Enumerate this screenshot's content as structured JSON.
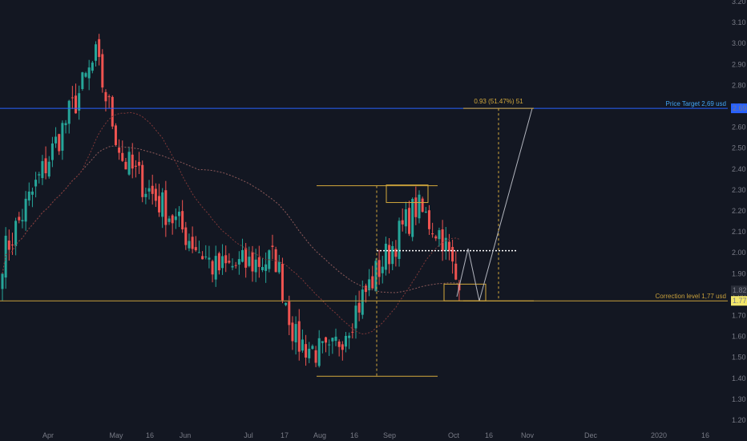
{
  "chart_data": {
    "type": "candlestick",
    "title": "",
    "xlabel": "",
    "ylabel": "",
    "ylim": [
      1.2,
      3.2
    ],
    "y_ticks": [
      "1.20",
      "1.30",
      "1.40",
      "1.50",
      "1.60",
      "1.70",
      "1.80",
      "1.90",
      "2.00",
      "2.10",
      "2.20",
      "2.30",
      "2.40",
      "2.50",
      "2.60",
      "2.70",
      "2.80",
      "2.90",
      "3.00",
      "3.10",
      "3.20"
    ],
    "x_ticks": [
      "Apr",
      "May",
      "16",
      "Jun",
      "Jul",
      "17",
      "Aug",
      "16",
      "Sep",
      "Oct",
      "16",
      "Nov",
      "Dec",
      "2020",
      "16"
    ],
    "grid": false,
    "current_price": "1.82",
    "price_target": {
      "label": "Price Target 2,69 usd",
      "badge": "2.69",
      "value": 2.69
    },
    "correction_level": {
      "label": "Correction level 1,77 usd",
      "badge": "1.77",
      "value": 1.77
    },
    "measure_label": "0.93 (51.47%) 51",
    "anchors": [
      {
        "value": 1.98,
        "note": "early Apr open"
      },
      {
        "value": 2.93,
        "note": "late Apr high"
      },
      {
        "value": 2.45,
        "note": "early May"
      },
      {
        "value": 1.92,
        "note": "mid Jun"
      },
      {
        "value": 1.97,
        "note": "early Jul"
      },
      {
        "value": 1.58,
        "note": "mid Jul"
      },
      {
        "value": 1.5,
        "note": "early Aug low"
      },
      {
        "value": 1.9,
        "note": "mid Aug"
      },
      {
        "value": 2.22,
        "note": "early Sep high"
      },
      {
        "value": 2.08,
        "note": "late Sep"
      },
      {
        "value": 1.82,
        "note": "early Oct"
      }
    ],
    "support_low": 1.41,
    "resistance_high": 2.32,
    "breakout_level": 2.01,
    "projection_path": [
      1.79,
      2.02,
      1.77,
      2.69
    ]
  },
  "colors": {
    "background": "#131722",
    "bull": "#26a69a",
    "bear": "#ef5350",
    "axis_text": "#787b86",
    "target_line": "#2962ff",
    "target_text": "#42a5f5",
    "correction_line": "#c8a03c",
    "correction_text": "#c8a03c",
    "annotation": "#d4a93c",
    "projection": "#b2b5be",
    "ma_slow": "#8e5a5a",
    "ma_fast": "#7e3838",
    "price_badge_bg": "#2a2e39"
  }
}
